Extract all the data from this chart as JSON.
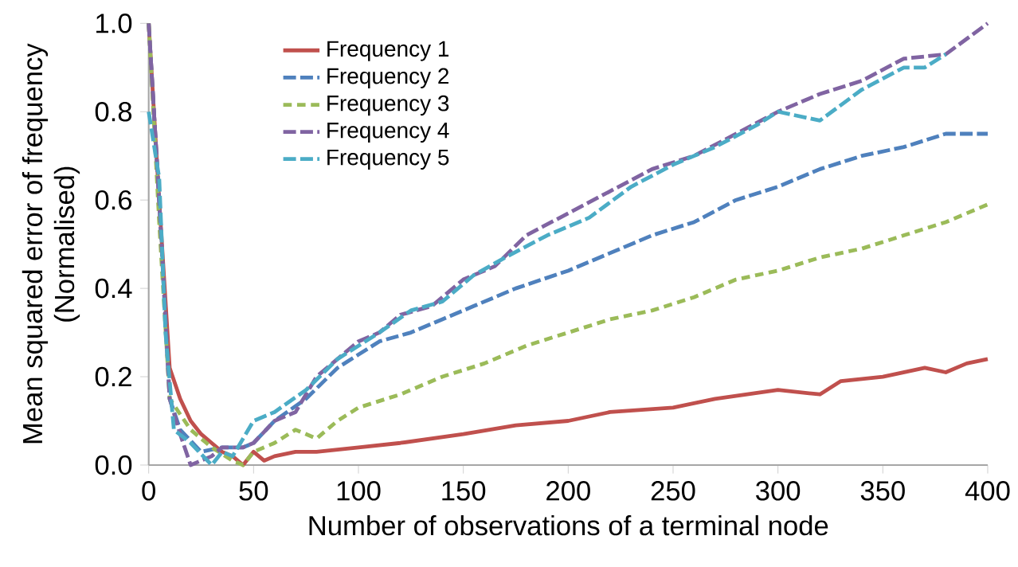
{
  "chart_data": {
    "type": "line",
    "xlabel": "Number of observations of a terminal node",
    "ylabel": "Mean squared error of frequency\n(Normalised)",
    "xlim": [
      0,
      400
    ],
    "xticks": [
      0,
      50,
      100,
      150,
      200,
      250,
      300,
      350,
      400
    ],
    "ylim": [
      0,
      1.0
    ],
    "yticks": [
      {
        "value": 0,
        "label": "0.0"
      },
      {
        "value": 0.2,
        "label": "0.2"
      },
      {
        "value": 0.4,
        "label": "0.4"
      },
      {
        "value": 0.6,
        "label": "0.6"
      },
      {
        "value": 0.8,
        "label": "0.8"
      },
      {
        "value": 1.0,
        "label": "1.0"
      }
    ],
    "grid": false,
    "legend": "top left",
    "marker": "none",
    "series": [
      {
        "name": "Frequency 1",
        "color": "#c0504d",
        "line_style": "solid",
        "x": [
          0,
          5,
          10,
          15,
          20,
          25,
          30,
          35,
          40,
          45,
          50,
          55,
          60,
          70,
          80,
          100,
          120,
          150,
          175,
          200,
          220,
          250,
          270,
          300,
          320,
          330,
          350,
          370,
          380,
          390,
          400
        ],
        "values": [
          1.0,
          0.6,
          0.22,
          0.15,
          0.1,
          0.07,
          0.05,
          0.03,
          0.02,
          0.0,
          0.03,
          0.01,
          0.02,
          0.03,
          0.03,
          0.04,
          0.05,
          0.07,
          0.09,
          0.1,
          0.12,
          0.13,
          0.15,
          0.17,
          0.16,
          0.19,
          0.2,
          0.22,
          0.21,
          0.23,
          0.24
        ]
      },
      {
        "name": "Frequency 2",
        "color": "#4f81bd",
        "line_style": "dashed",
        "x": [
          0,
          5,
          10,
          15,
          25,
          35,
          45,
          50,
          60,
          75,
          90,
          100,
          110,
          125,
          140,
          155,
          175,
          200,
          220,
          240,
          260,
          280,
          300,
          320,
          340,
          360,
          380,
          400
        ],
        "values": [
          1.0,
          0.6,
          0.15,
          0.08,
          0.03,
          0.04,
          0.04,
          0.05,
          0.1,
          0.15,
          0.22,
          0.25,
          0.28,
          0.3,
          0.33,
          0.36,
          0.4,
          0.44,
          0.48,
          0.52,
          0.55,
          0.6,
          0.63,
          0.67,
          0.7,
          0.72,
          0.75,
          0.75
        ]
      },
      {
        "name": "Frequency 3",
        "color": "#9bbb59",
        "line_style": "dotted",
        "x": [
          0,
          5,
          10,
          20,
          30,
          40,
          45,
          50,
          60,
          70,
          80,
          90,
          100,
          120,
          140,
          160,
          180,
          200,
          220,
          240,
          260,
          280,
          300,
          320,
          340,
          360,
          380,
          400
        ],
        "values": [
          1.0,
          0.55,
          0.15,
          0.08,
          0.04,
          0.01,
          0.0,
          0.03,
          0.05,
          0.08,
          0.06,
          0.1,
          0.13,
          0.16,
          0.2,
          0.23,
          0.27,
          0.3,
          0.33,
          0.35,
          0.38,
          0.42,
          0.44,
          0.47,
          0.49,
          0.52,
          0.55,
          0.59
        ]
      },
      {
        "name": "Frequency 4",
        "color": "#8064a2",
        "line_style": "dashed",
        "x": [
          0,
          5,
          10,
          15,
          20,
          30,
          35,
          45,
          50,
          60,
          70,
          80,
          90,
          100,
          110,
          120,
          135,
          150,
          165,
          180,
          200,
          220,
          240,
          260,
          280,
          300,
          320,
          340,
          360,
          380,
          400
        ],
        "values": [
          1.0,
          0.6,
          0.15,
          0.07,
          0.0,
          0.02,
          0.04,
          0.04,
          0.05,
          0.1,
          0.12,
          0.2,
          0.24,
          0.28,
          0.3,
          0.34,
          0.36,
          0.42,
          0.45,
          0.52,
          0.57,
          0.62,
          0.67,
          0.7,
          0.75,
          0.8,
          0.84,
          0.87,
          0.92,
          0.93,
          1.0
        ]
      },
      {
        "name": "Frequency 5",
        "color": "#4bacc6",
        "line_style": "dashed",
        "x": [
          0,
          5,
          8,
          12,
          20,
          30,
          35,
          40,
          50,
          60,
          75,
          90,
          100,
          110,
          125,
          140,
          155,
          170,
          190,
          210,
          230,
          250,
          270,
          290,
          300,
          320,
          340,
          360,
          370,
          380
        ],
        "values": [
          0.8,
          0.65,
          0.3,
          0.08,
          0.05,
          0.0,
          0.03,
          0.02,
          0.1,
          0.12,
          0.17,
          0.24,
          0.27,
          0.3,
          0.35,
          0.37,
          0.43,
          0.47,
          0.52,
          0.56,
          0.63,
          0.68,
          0.72,
          0.77,
          0.8,
          0.78,
          0.85,
          0.9,
          0.9,
          0.93
        ]
      }
    ]
  }
}
